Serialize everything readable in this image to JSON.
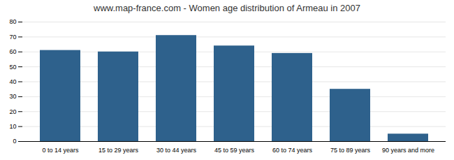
{
  "chart_data": {
    "type": "bar",
    "title": "www.map-france.com - Women age distribution of Armeau in 2007",
    "categories": [
      "0 to 14 years",
      "15 to 29 years",
      "30 to 44 years",
      "45 to 59 years",
      "60 to 74 years",
      "75 to 89 years",
      "90 years and more"
    ],
    "values": [
      61,
      60,
      71,
      64,
      59,
      35,
      5
    ],
    "color": "#2e618c",
    "ylim": [
      0,
      80
    ],
    "yticks": [
      0,
      10,
      20,
      30,
      40,
      50,
      60,
      70,
      80
    ],
    "grid": true
  }
}
